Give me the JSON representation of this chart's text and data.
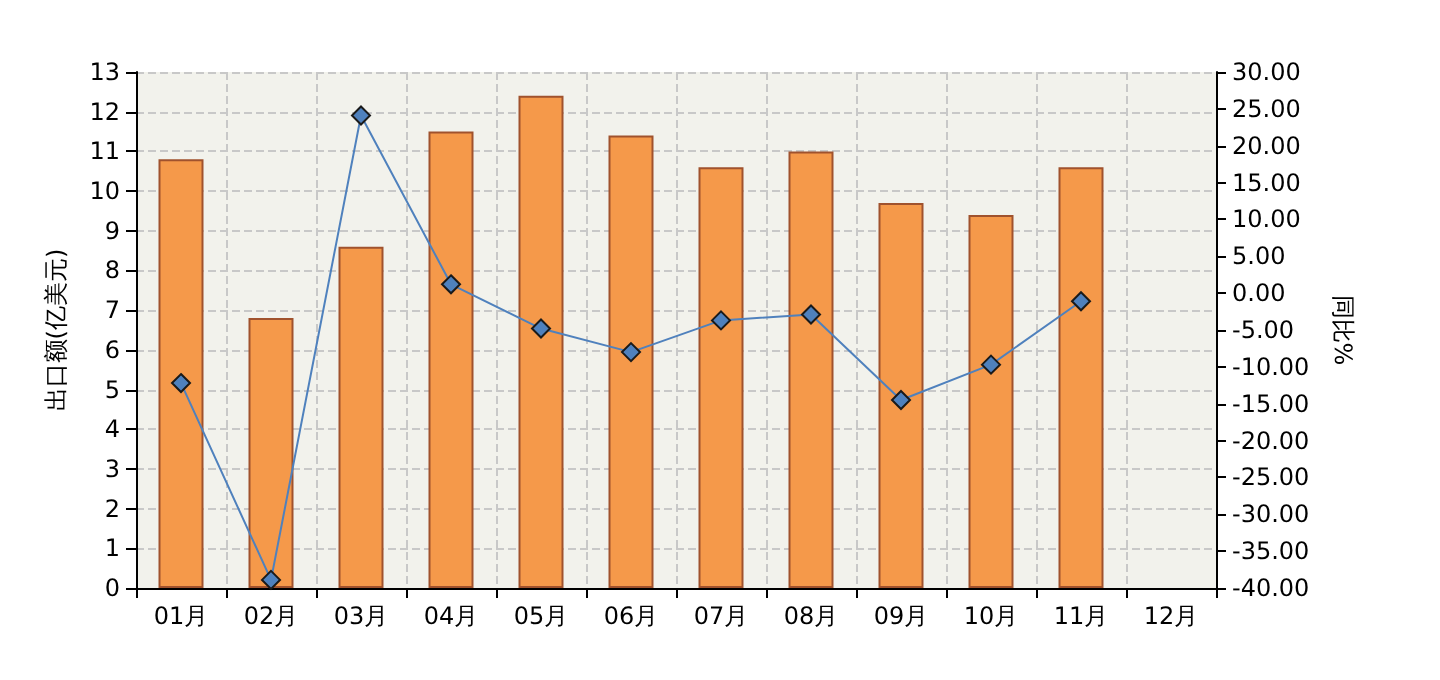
{
  "chart_data": {
    "type": "bar",
    "ylabel": "出口额(亿美元)",
    "y2label": "同比%",
    "categories": [
      "01月",
      "02月",
      "03月",
      "04月",
      "05月",
      "06月",
      "07月",
      "08月",
      "09月",
      "10月",
      "11月",
      "12月"
    ],
    "series": [
      {
        "color": "#f5994a",
        "values": [
          10.8,
          6.8,
          8.6,
          11.5,
          12.4,
          11.4,
          10.6,
          11.0,
          9.7,
          9.4,
          10.6,
          null
        ]
      },
      {
        "type": "line",
        "axis": "y2",
        "color": "#4f81bd",
        "marker": "diamond",
        "values": [
          -12.2,
          -38.9,
          24.1,
          1.2,
          -4.8,
          -8.0,
          -3.7,
          -2.9,
          -14.5,
          -9.7,
          -1.1,
          null
        ]
      }
    ],
    "ylim": [
      0,
      13
    ],
    "yticks": [
      0,
      1,
      2,
      3,
      4,
      5,
      6,
      7,
      8,
      9,
      10,
      11,
      12,
      13
    ],
    "y2lim": [
      -40,
      30
    ],
    "y2ticks": [
      {
        "value": -40,
        "label": "-40.00"
      },
      {
        "value": -35,
        "label": "-35.00"
      },
      {
        "value": -30,
        "label": "-30.00"
      },
      {
        "value": -25,
        "label": "-25.00"
      },
      {
        "value": -20,
        "label": "-20.00"
      },
      {
        "value": -15,
        "label": "-15.00"
      },
      {
        "value": -10,
        "label": "-10.00"
      },
      {
        "value": -5,
        "label": "-5.00"
      },
      {
        "value": 0,
        "label": "0.00"
      },
      {
        "value": 5,
        "label": "5.00"
      },
      {
        "value": 10,
        "label": "10.00"
      },
      {
        "value": 15,
        "label": "15.00"
      },
      {
        "value": 20,
        "label": "20.00"
      },
      {
        "value": 25,
        "label": "25.00"
      },
      {
        "value": 30,
        "label": "30.00"
      }
    ],
    "grid": true
  }
}
